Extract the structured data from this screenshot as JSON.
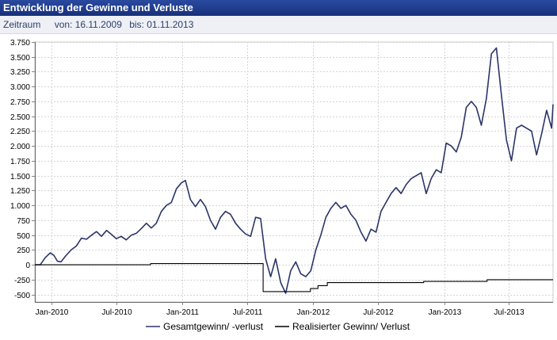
{
  "header": {
    "title": "Entwicklung der Gewinne und Verluste",
    "period_label": "Zeitraum",
    "from_label": "von: 16.11.2009",
    "to_label": "bis: 01.11.2013"
  },
  "colors": {
    "title_bg": "#1f3a8a",
    "series_total": "#2b3568",
    "series_realized": "#000000"
  },
  "chart_data": {
    "type": "line",
    "xlabel": "",
    "ylabel": "",
    "grid": true,
    "legend_position": "bottom",
    "xlim": [
      "2009-11-16",
      "2013-11-01"
    ],
    "ylim": [
      -625,
      3750
    ],
    "yticks": [
      -500,
      -250,
      0,
      250,
      500,
      750,
      1000,
      1250,
      1500,
      1750,
      2000,
      2250,
      2500,
      2750,
      3000,
      3250,
      3500,
      3750
    ],
    "ytick_labels": [
      "-500",
      "-250",
      "0",
      "250",
      "500",
      "750",
      "1.000",
      "1.250",
      "1.500",
      "1.750",
      "2.000",
      "2.250",
      "2.500",
      "2.750",
      "3.000",
      "3.250",
      "3.500",
      "3.750"
    ],
    "xticks": [
      "2010-01-01",
      "2010-07-01",
      "2011-01-01",
      "2011-07-01",
      "2012-01-01",
      "2012-07-01",
      "2013-01-01",
      "2013-07-01"
    ],
    "xtick_labels": [
      "Jan-2010",
      "Jul-2010",
      "Jan-2011",
      "Jul-2011",
      "Jan-2012",
      "Jul-2012",
      "Jan-2013",
      "Jul-2013"
    ],
    "series": [
      {
        "name": "Gesamtgewinn/ -verlust",
        "color": "#2b3568",
        "points": [
          [
            "2009-11-16",
            0
          ],
          [
            "2009-12-01",
            0
          ],
          [
            "2009-12-15",
            120
          ],
          [
            "2009-12-29",
            200
          ],
          [
            "2010-01-08",
            160
          ],
          [
            "2010-01-18",
            60
          ],
          [
            "2010-01-28",
            50
          ],
          [
            "2010-02-10",
            150
          ],
          [
            "2010-02-25",
            250
          ],
          [
            "2010-03-12",
            320
          ],
          [
            "2010-03-26",
            450
          ],
          [
            "2010-04-09",
            430
          ],
          [
            "2010-04-23",
            500
          ],
          [
            "2010-05-07",
            560
          ],
          [
            "2010-05-21",
            480
          ],
          [
            "2010-06-04",
            580
          ],
          [
            "2010-06-18",
            510
          ],
          [
            "2010-07-01",
            440
          ],
          [
            "2010-07-15",
            480
          ],
          [
            "2010-07-29",
            420
          ],
          [
            "2010-08-12",
            500
          ],
          [
            "2010-08-26",
            530
          ],
          [
            "2010-09-09",
            610
          ],
          [
            "2010-09-23",
            700
          ],
          [
            "2010-10-07",
            620
          ],
          [
            "2010-10-21",
            700
          ],
          [
            "2010-11-04",
            900
          ],
          [
            "2010-11-18",
            1000
          ],
          [
            "2010-12-02",
            1050
          ],
          [
            "2010-12-16",
            1280
          ],
          [
            "2010-12-30",
            1380
          ],
          [
            "2011-01-10",
            1420
          ],
          [
            "2011-01-24",
            1100
          ],
          [
            "2011-02-07",
            980
          ],
          [
            "2011-02-21",
            1100
          ],
          [
            "2011-03-07",
            980
          ],
          [
            "2011-03-21",
            750
          ],
          [
            "2011-04-04",
            600
          ],
          [
            "2011-04-18",
            800
          ],
          [
            "2011-05-02",
            900
          ],
          [
            "2011-05-16",
            850
          ],
          [
            "2011-05-30",
            700
          ],
          [
            "2011-06-13",
            600
          ],
          [
            "2011-06-27",
            520
          ],
          [
            "2011-07-11",
            480
          ],
          [
            "2011-07-25",
            800
          ],
          [
            "2011-08-08",
            780
          ],
          [
            "2011-08-22",
            100
          ],
          [
            "2011-09-05",
            -200
          ],
          [
            "2011-09-19",
            100
          ],
          [
            "2011-10-03",
            -300
          ],
          [
            "2011-10-17",
            -480
          ],
          [
            "2011-10-31",
            -100
          ],
          [
            "2011-11-14",
            50
          ],
          [
            "2011-11-28",
            -150
          ],
          [
            "2011-12-12",
            -200
          ],
          [
            "2011-12-26",
            -100
          ],
          [
            "2012-01-09",
            250
          ],
          [
            "2012-01-23",
            500
          ],
          [
            "2012-02-06",
            800
          ],
          [
            "2012-02-20",
            950
          ],
          [
            "2012-03-05",
            1050
          ],
          [
            "2012-03-19",
            950
          ],
          [
            "2012-04-02",
            1000
          ],
          [
            "2012-04-16",
            850
          ],
          [
            "2012-04-30",
            750
          ],
          [
            "2012-05-14",
            550
          ],
          [
            "2012-05-28",
            400
          ],
          [
            "2012-06-11",
            600
          ],
          [
            "2012-06-25",
            550
          ],
          [
            "2012-07-09",
            900
          ],
          [
            "2012-07-23",
            1050
          ],
          [
            "2012-08-06",
            1200
          ],
          [
            "2012-08-20",
            1300
          ],
          [
            "2012-09-03",
            1200
          ],
          [
            "2012-09-17",
            1350
          ],
          [
            "2012-10-01",
            1450
          ],
          [
            "2012-10-15",
            1500
          ],
          [
            "2012-10-29",
            1550
          ],
          [
            "2012-11-12",
            1200
          ],
          [
            "2012-11-26",
            1450
          ],
          [
            "2012-12-10",
            1600
          ],
          [
            "2012-12-24",
            1550
          ],
          [
            "2013-01-07",
            2050
          ],
          [
            "2013-01-21",
            2000
          ],
          [
            "2013-02-04",
            1900
          ],
          [
            "2013-02-18",
            2150
          ],
          [
            "2013-03-04",
            2650
          ],
          [
            "2013-03-18",
            2750
          ],
          [
            "2013-04-01",
            2650
          ],
          [
            "2013-04-15",
            2350
          ],
          [
            "2013-04-29",
            2800
          ],
          [
            "2013-05-13",
            3550
          ],
          [
            "2013-05-27",
            3650
          ],
          [
            "2013-06-10",
            2850
          ],
          [
            "2013-06-24",
            2100
          ],
          [
            "2013-07-08",
            1750
          ],
          [
            "2013-07-22",
            2300
          ],
          [
            "2013-08-05",
            2350
          ],
          [
            "2013-08-19",
            2300
          ],
          [
            "2013-09-02",
            2250
          ],
          [
            "2013-09-16",
            1850
          ],
          [
            "2013-09-30",
            2200
          ],
          [
            "2013-10-14",
            2600
          ],
          [
            "2013-10-28",
            2300
          ],
          [
            "2013-11-01",
            2700
          ]
        ]
      },
      {
        "name": "Realisierter Gewinn/ Verlust",
        "color": "#000000",
        "points": [
          [
            "2009-11-16",
            0
          ],
          [
            "2010-10-05",
            0
          ],
          [
            "2010-10-05",
            20
          ],
          [
            "2011-08-15",
            20
          ],
          [
            "2011-08-15",
            -450
          ],
          [
            "2011-12-25",
            -450
          ],
          [
            "2011-12-25",
            -400
          ],
          [
            "2012-01-15",
            -400
          ],
          [
            "2012-01-15",
            -350
          ],
          [
            "2012-02-10",
            -350
          ],
          [
            "2012-02-10",
            -300
          ],
          [
            "2012-11-05",
            -300
          ],
          [
            "2012-11-05",
            -280
          ],
          [
            "2013-05-01",
            -280
          ],
          [
            "2013-05-01",
            -250
          ],
          [
            "2013-11-01",
            -250
          ]
        ]
      }
    ]
  }
}
